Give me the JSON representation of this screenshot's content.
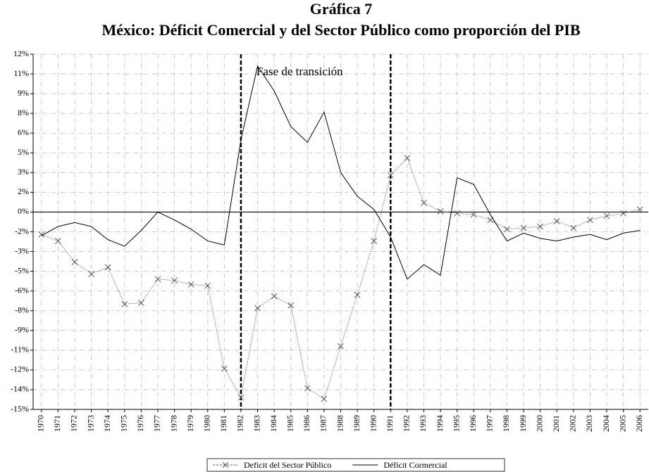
{
  "chart_data": {
    "type": "line",
    "title": "Gráfica 7",
    "subtitle": "México: Déficit Comercial y del Sector Público como proporción del PIB",
    "categories": [
      "1970",
      "1971",
      "1972",
      "1973",
      "1974",
      "1975",
      "1976",
      "1977",
      "1978",
      "1979",
      "1980",
      "1981",
      "1982",
      "1983",
      "1984",
      "1985",
      "1986",
      "1987",
      "1988",
      "1989",
      "1990",
      "1991",
      "1992",
      "1993",
      "1994",
      "1995",
      "1996",
      "1997",
      "1998",
      "1999",
      "2000",
      "2001",
      "2002",
      "2003",
      "2004",
      "2005",
      "2006"
    ],
    "series": [
      {
        "name": "Deficit del Sector Público",
        "color": "#555555",
        "marker": "x",
        "line_style": "dotted",
        "values": [
          -1.7,
          -2.2,
          -3.8,
          -4.7,
          -4.2,
          -7.0,
          -6.9,
          -5.1,
          -5.2,
          -5.5,
          -5.6,
          -11.9,
          -14.1,
          -7.3,
          -6.4,
          -7.1,
          -13.4,
          -14.2,
          -10.2,
          -6.3,
          -2.2,
          2.8,
          4.1,
          0.7,
          0.05,
          -0.1,
          -0.2,
          -0.6,
          -1.3,
          -1.2,
          -1.1,
          -0.7,
          -1.2,
          -0.6,
          -0.3,
          -0.1,
          0.2
        ]
      },
      {
        "name": "Déficit Cormercial",
        "color": "#000000",
        "line_style": "solid",
        "values": [
          -1.8,
          -1.1,
          -0.8,
          -1.1,
          -2.1,
          -2.6,
          -1.4,
          0,
          -0.6,
          -1.3,
          -2.2,
          -2.5,
          5.5,
          11.1,
          9.2,
          6.5,
          5.3,
          7.6,
          3.0,
          1.2,
          0.2,
          -1.9,
          -5.1,
          -4.0,
          -4.8,
          2.6,
          2.1,
          -0.2,
          -2.2,
          -1.6,
          -2.0,
          -2.2,
          -1.9,
          -1.7,
          -2.1,
          -1.6,
          -1.4
        ]
      }
    ],
    "ylim": [
      -15,
      12
    ],
    "yticks": [
      {
        "value": 12,
        "label": "12%"
      },
      {
        "value": 10.5,
        "label": "11%"
      },
      {
        "value": 9,
        "label": "9%"
      },
      {
        "value": 7.5,
        "label": "8%"
      },
      {
        "value": 6,
        "label": "6%"
      },
      {
        "value": 4.5,
        "label": "5%"
      },
      {
        "value": 3,
        "label": "3%"
      },
      {
        "value": 1.5,
        "label": "2%"
      },
      {
        "value": 0,
        "label": "0%"
      },
      {
        "value": -1.5,
        "label": "-2%"
      },
      {
        "value": -3,
        "label": "-3%"
      },
      {
        "value": -4.5,
        "label": "-5%"
      },
      {
        "value": -6,
        "label": "-6%"
      },
      {
        "value": -7.5,
        "label": "-8%"
      },
      {
        "value": -9,
        "label": "-9%"
      },
      {
        "value": -10.5,
        "label": "-11%"
      },
      {
        "value": -12,
        "label": "-12%"
      },
      {
        "value": -13.5,
        "label": "-14%"
      },
      {
        "value": -15,
        "label": "-15%"
      }
    ],
    "grid": true,
    "legend": "bottom",
    "annotation": {
      "label": "Fase de transición",
      "from": "1982",
      "to": "1991"
    }
  }
}
